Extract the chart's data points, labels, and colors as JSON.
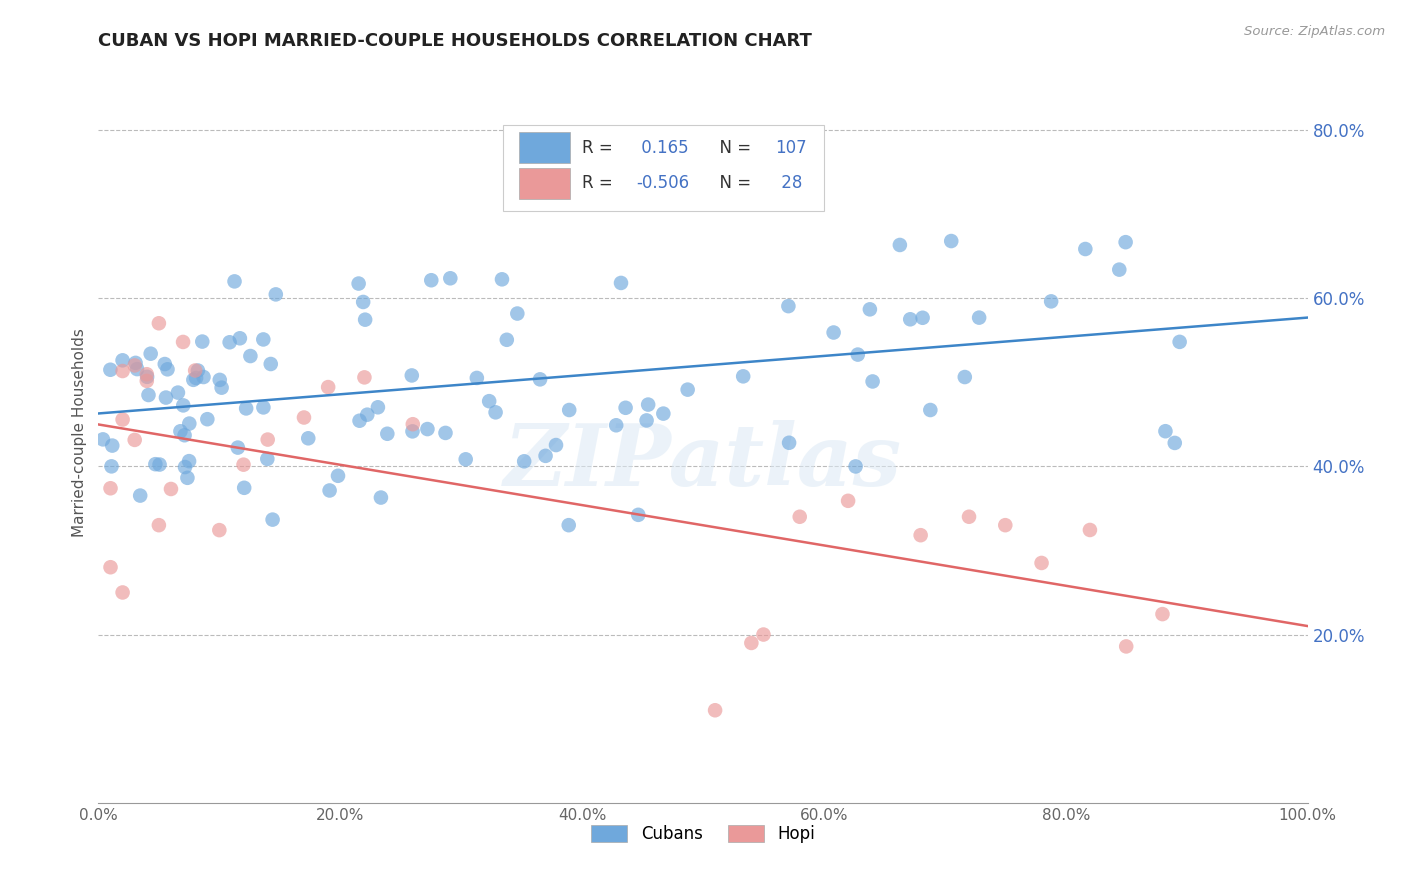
{
  "title": "CUBAN VS HOPI MARRIED-COUPLE HOUSEHOLDS CORRELATION CHART",
  "ylabel": "Married-couple Households",
  "source_text": "Source: ZipAtlas.com",
  "cuban_R": 0.165,
  "cuban_N": 107,
  "hopi_R": -0.506,
  "hopi_N": 28,
  "xlim": [
    0.0,
    1.0
  ],
  "ylim": [
    0.0,
    0.88
  ],
  "xtick_labels": [
    "0.0%",
    "20.0%",
    "40.0%",
    "60.0%",
    "80.0%",
    "100.0%"
  ],
  "xtick_vals": [
    0.0,
    0.2,
    0.4,
    0.6,
    0.8,
    1.0
  ],
  "ytick_labels": [
    "20.0%",
    "40.0%",
    "60.0%",
    "80.0%"
  ],
  "ytick_vals": [
    0.2,
    0.4,
    0.6,
    0.8
  ],
  "cuban_color": "#6fa8dc",
  "hopi_color": "#ea9999",
  "cuban_line_color": "#3d85c8",
  "hopi_line_color": "#e06666",
  "background_color": "#ffffff",
  "watermark_text": "ZIPatlas"
}
